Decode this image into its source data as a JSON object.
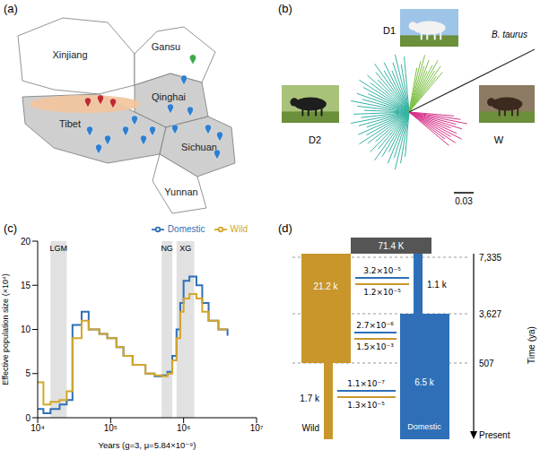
{
  "panel_a": {
    "letter": "(a)",
    "regions": [
      "Xinjiang",
      "Gansu",
      "Qinghai",
      "Tibet",
      "Sichuan",
      "Yunnan"
    ]
  },
  "panel_b": {
    "letter": "(b)",
    "clades": [
      "D1",
      "D2",
      "W"
    ],
    "outgroup": "B. taurus",
    "scale_bar": "0.03"
  },
  "chart_data": {
    "letter": "(c)",
    "type": "line",
    "x_label": "Years (g=3, μ=5.84×10⁻⁹)",
    "y_label": "Effective population size (×10⁴)",
    "log": "x",
    "xlim": [
      10000,
      10000000
    ],
    "xticks": [
      {
        "value": 10000,
        "label": "10⁴"
      },
      {
        "value": 100000,
        "label": "10⁵"
      },
      {
        "value": 1000000,
        "label": "10⁶"
      },
      {
        "value": 10000000,
        "label": "10⁷"
      }
    ],
    "ylim": [
      0,
      20
    ],
    "yticks": [
      0,
      5,
      10,
      15,
      20
    ],
    "legend": "top-right",
    "x": [
      10000,
      12000,
      15000,
      20000,
      25000,
      30000,
      40000,
      50000,
      70000,
      90000,
      120000,
      150000,
      200000,
      300000,
      400000,
      500000,
      600000,
      700000,
      800000,
      900000,
      1000000,
      1200000,
      1500000,
      1800000,
      2200000,
      3000000,
      4000000
    ],
    "series": [
      {
        "name": "Domestic",
        "color": "#2e6fb7",
        "values": [
          1,
          0.5,
          1,
          1.5,
          2,
          10.5,
          12,
          10,
          9.5,
          9,
          8,
          7,
          6,
          5,
          4.7,
          4.8,
          5.2,
          7,
          10,
          13,
          15.5,
          16,
          15,
          13,
          11,
          10,
          9.3
        ]
      },
      {
        "name": "Wild",
        "color": "#d4a62a",
        "values": [
          4,
          1.5,
          1.8,
          2,
          3,
          9,
          11,
          10,
          9.5,
          9,
          8,
          7,
          6,
          5,
          4.8,
          4.7,
          5,
          6.5,
          9,
          12,
          13.5,
          14,
          13.5,
          12,
          11,
          10,
          10
        ]
      }
    ],
    "annotations": [
      {
        "text": "LGM",
        "x_range": [
          15000,
          25000
        ]
      },
      {
        "text": "NG",
        "x_range": [
          500000,
          700000
        ]
      },
      {
        "text": "XG",
        "x_range": [
          800000,
          1400000
        ]
      }
    ]
  },
  "panel_d": {
    "letter": "(d)",
    "ancestral": "71.4 K",
    "time_label": "Time (ya)",
    "times": [
      "7,335",
      "3,627",
      "507"
    ],
    "present": "Present",
    "wild": {
      "label": "Wild",
      "sizes": [
        "21.2 k",
        "1.7 k"
      ]
    },
    "domestic": {
      "label": "Domestic",
      "sizes": [
        "1.1 k",
        "6.5 k"
      ]
    },
    "migration": [
      [
        "3.2×10⁻⁵",
        "1.2×10⁻⁵"
      ],
      [
        "2.7×10⁻⁶",
        "1.5×10⁻³"
      ],
      [
        "1.1×10⁻⁷",
        "1.3×10⁻⁵"
      ]
    ]
  }
}
